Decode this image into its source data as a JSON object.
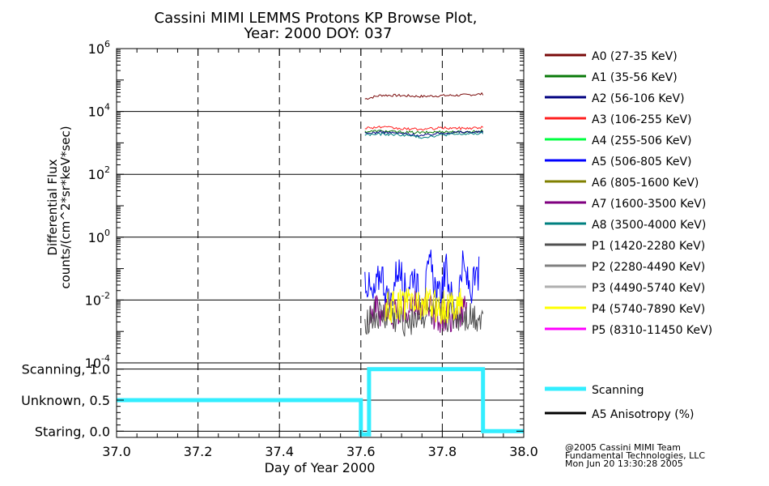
{
  "chart_data": [
    {
      "type": "line",
      "title": "Cassini MIMI LEMMS Protons KP Browse Plot,",
      "subtitle": "Year: 2000 DOY: 037",
      "ylabel_line1": "Differential Flux",
      "ylabel_line2": "counts/(cm^2*sr*keV*sec)",
      "xlim": [
        37.0,
        38.0
      ],
      "ylim": [
        0.0001,
        1000000
      ],
      "yscale": "log",
      "grid": true,
      "y_ticks": [
        {
          "base": "10",
          "exp": "-4"
        },
        {
          "base": "10",
          "exp": "-2"
        },
        {
          "base": "10",
          "exp": "0"
        },
        {
          "base": "10",
          "exp": "2"
        },
        {
          "base": "10",
          "exp": "4"
        },
        {
          "base": "10",
          "exp": "6"
        }
      ],
      "legend_position": "right",
      "series": [
        {
          "name": "A0 (27-35 KeV)",
          "color": "#7a0a0a",
          "x": [
            37.61,
            37.65,
            37.7,
            37.75,
            37.8,
            37.85,
            37.9
          ],
          "y": [
            25000,
            33000,
            32000,
            30000,
            32000,
            33000,
            36000
          ]
        },
        {
          "name": "A1 (35-56 KeV)",
          "color": "#0a7a0a",
          "x": [
            37.61,
            37.65,
            37.7,
            37.75,
            37.8,
            37.85,
            37.9
          ],
          "y": [
            2300,
            2400,
            2200,
            2100,
            2300,
            2200,
            2400
          ]
        },
        {
          "name": "A2 (56-106 KeV)",
          "color": "#000080",
          "x": [
            37.61,
            37.65,
            37.7,
            37.75,
            37.8,
            37.85,
            37.9
          ],
          "y": [
            2000,
            2200,
            2000,
            1700,
            2100,
            2200,
            2200
          ]
        },
        {
          "name": "A3 (106-255 KeV)",
          "color": "#ff2020",
          "x": [
            37.61,
            37.65,
            37.7,
            37.75,
            37.8,
            37.85,
            37.9
          ],
          "y": [
            3000,
            3200,
            2800,
            2700,
            3000,
            2900,
            3100
          ]
        },
        {
          "name": "A4 (255-506 KeV)",
          "color": "#00ff40",
          "x": [],
          "y": []
        },
        {
          "name": "A5 (506-805 KeV)",
          "color": "#0000ff",
          "x": [
            37.61,
            37.63,
            37.65,
            37.67,
            37.69,
            37.71,
            37.73,
            37.75,
            37.77,
            37.79,
            37.81,
            37.83,
            37.85,
            37.87,
            37.89
          ],
          "y": [
            0.06,
            0.01,
            0.1,
            0.005,
            0.12,
            0.02,
            0.08,
            0.006,
            0.15,
            0.01,
            0.09,
            0.004,
            0.11,
            0.02,
            0.07
          ]
        },
        {
          "name": "A6 (805-1600 KeV)",
          "color": "#808000",
          "x": [],
          "y": []
        },
        {
          "name": "A7 (1600-3500 KeV)",
          "color": "#800080",
          "x": [
            37.62,
            37.68,
            37.74,
            37.8,
            37.86
          ],
          "y": [
            0.005,
            0.004,
            0.006,
            0.003,
            0.004
          ]
        },
        {
          "name": "A8 (3500-4000 KeV)",
          "color": "#008080",
          "x": [
            37.61,
            37.65,
            37.7,
            37.75,
            37.8,
            37.85,
            37.9
          ],
          "y": [
            1800,
            1900,
            1800,
            1500,
            1800,
            1900,
            2000
          ]
        },
        {
          "name": "P1 (1420-2280 KeV)",
          "color": "#505050",
          "x": [
            37.61,
            37.65,
            37.7,
            37.75,
            37.8,
            37.85,
            37.9
          ],
          "y": [
            0.0025,
            0.003,
            0.0022,
            0.0035,
            0.0028,
            0.003,
            0.0027
          ]
        },
        {
          "name": "P2 (2280-4490 KeV)",
          "color": "#808080",
          "x": [],
          "y": []
        },
        {
          "name": "P3 (4490-5740 KeV)",
          "color": "#b0b0b0",
          "x": [],
          "y": []
        },
        {
          "name": "P4 (5740-7890 KeV)",
          "color": "#ffff00",
          "x": [
            37.66,
            37.72,
            37.8,
            37.85
          ],
          "y": [
            0.005,
            0.009,
            0.006,
            0.008
          ]
        },
        {
          "name": "P5 (8310-11450 KeV)",
          "color": "#ff00ff",
          "x": [],
          "y": []
        }
      ]
    },
    {
      "type": "line",
      "xlabel": "Day of Year 2000",
      "xlim": [
        37.0,
        38.0
      ],
      "ylim": [
        -0.1,
        1.1
      ],
      "grid": true,
      "x_ticks": [
        "37.0",
        "37.2",
        "37.4",
        "37.6",
        "37.8",
        "38.0"
      ],
      "y_ticks": [
        {
          "value": 1.0,
          "label": "Scanning, 1.0"
        },
        {
          "value": 0.5,
          "label": "Unknown, 0.5"
        },
        {
          "value": 0.0,
          "label": "Staring, 0.0"
        }
      ],
      "legend_position": "right",
      "series": [
        {
          "name": "Scanning",
          "color": "#33eeff",
          "x": [
            37.0,
            37.6,
            37.6,
            37.62,
            37.62,
            37.9,
            37.9,
            38.0
          ],
          "y": [
            0.5,
            0.5,
            -0.05,
            -0.05,
            1.0,
            1.0,
            0.0,
            0.0
          ]
        },
        {
          "name": "A5 Anisotropy (%)",
          "color": "#000000",
          "x": [],
          "y": []
        }
      ]
    }
  ],
  "credits": [
    "@2005 Cassini MIMI Team",
    "Fundamental Technologies, LLC",
    "Mon Jun 20 13:30:28 2005"
  ]
}
